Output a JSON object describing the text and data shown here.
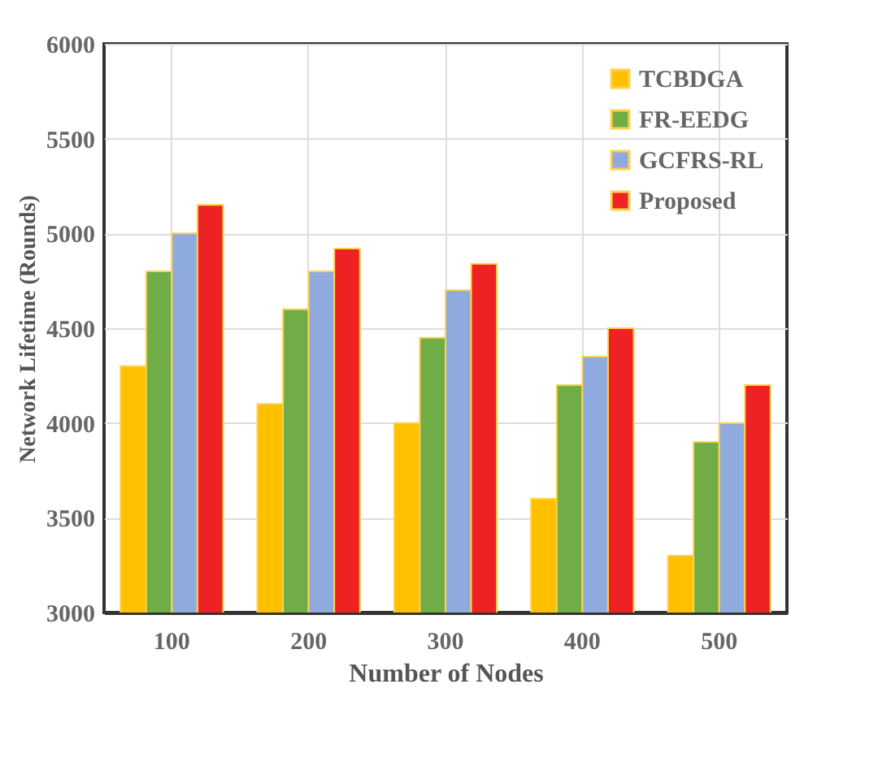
{
  "chart_data": {
    "type": "bar",
    "xlabel": "Number of Nodes",
    "ylabel": "Network Lifetime (Rounds)",
    "categories": [
      "100",
      "200",
      "300",
      "400",
      "500"
    ],
    "series": [
      {
        "name": "TCBDGA",
        "color": "#ffc000",
        "values": [
          4300,
          4100,
          4000,
          3600,
          3300
        ]
      },
      {
        "name": "FR-EEDG",
        "color": "#70ad47",
        "values": [
          4800,
          4600,
          4450,
          4200,
          3900
        ]
      },
      {
        "name": "GCFRS-RL",
        "color": "#8faadc",
        "values": [
          5000,
          4800,
          4700,
          4350,
          4000
        ]
      },
      {
        "name": "Proposed",
        "color": "#ee2222",
        "values": [
          5150,
          4920,
          4840,
          4500,
          4200
        ]
      }
    ],
    "ylim": [
      3000,
      6000
    ],
    "yticks": [
      3000,
      3500,
      4000,
      4500,
      5000,
      5500,
      6000
    ],
    "grid": true,
    "legend": "top right"
  }
}
